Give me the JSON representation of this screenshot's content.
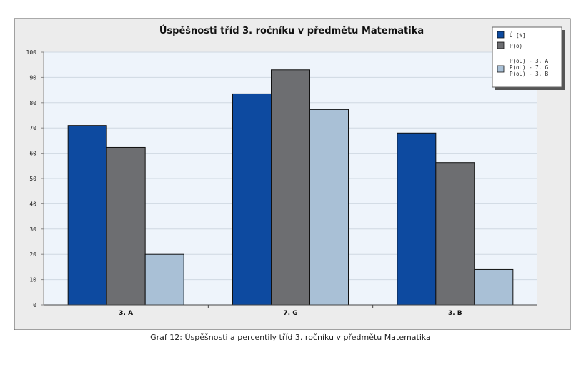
{
  "chart_data": {
    "type": "bar",
    "title": "Úspěšnosti tříd 3. ročníku v předmětu Matematika",
    "categories": [
      "3. A",
      "7. G",
      "3. B"
    ],
    "series": [
      {
        "name": "Ú [%]",
        "color": "#0d4aa0",
        "values": [
          71,
          83.5,
          68
        ]
      },
      {
        "name": "P(o)",
        "color": "#6d6e71",
        "values": [
          62.3,
          93,
          56.3
        ]
      },
      {
        "name": "P(oL) - 3. A\nP(oL) - 7. G\nP(oL) - 3. B",
        "color": "#a9c0d6",
        "values": [
          20,
          77.3,
          14
        ]
      }
    ],
    "ylim": [
      0,
      100
    ],
    "yticks": [
      0,
      10,
      20,
      30,
      40,
      50,
      60,
      70,
      80,
      90,
      100
    ],
    "xlabel": "",
    "ylabel": "",
    "grid": true,
    "legend": "top-right"
  },
  "caption": "Graf 12: Úspěšnosti a percentily tříd 3. ročníku v předmětu Matematika"
}
